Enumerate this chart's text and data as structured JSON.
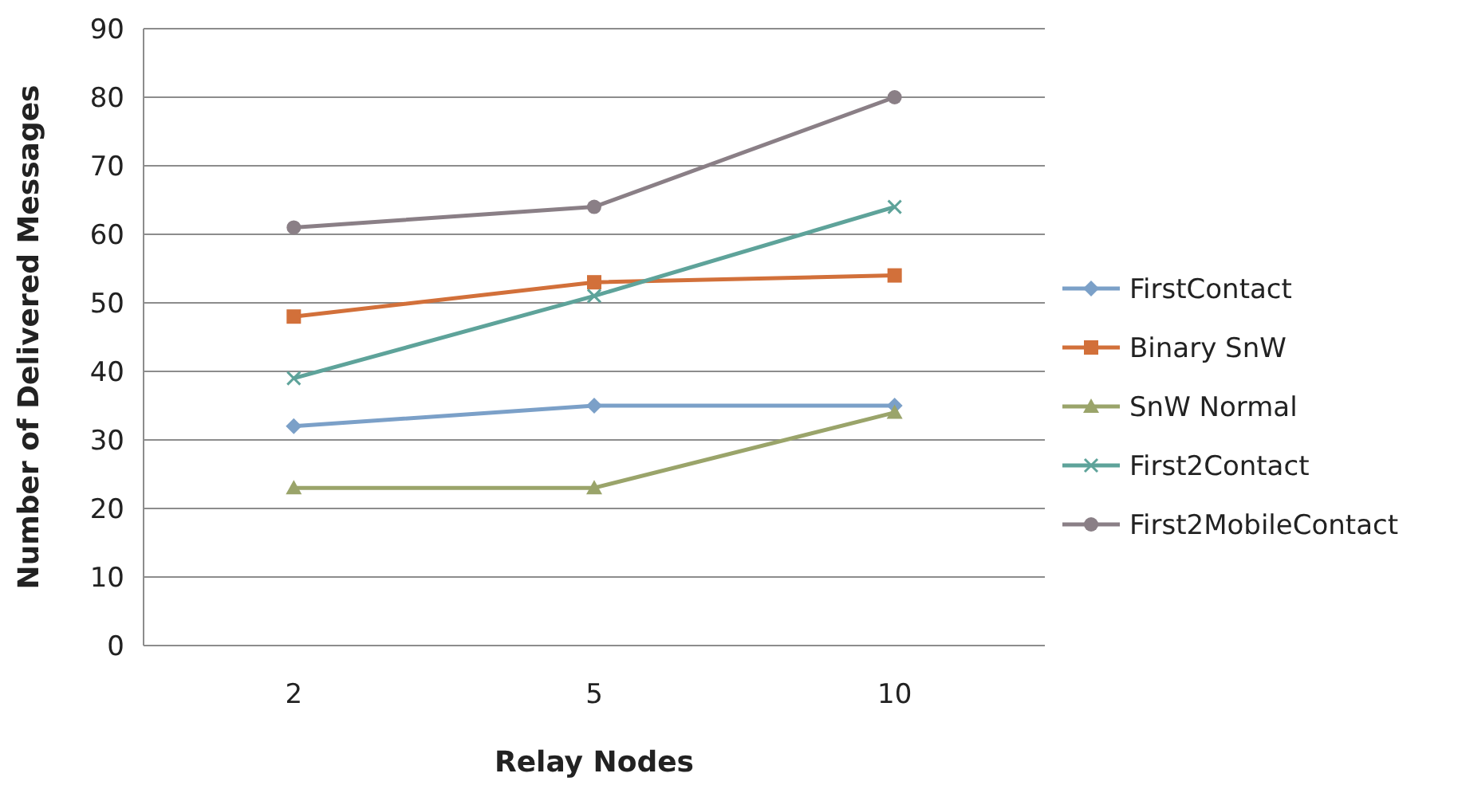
{
  "chart_data": {
    "type": "line",
    "xlabel": "Relay Nodes",
    "ylabel": "Number of Delivered Messages",
    "categories": [
      "2",
      "5",
      "10"
    ],
    "ylim": [
      0,
      90
    ],
    "yticks": [
      0,
      10,
      20,
      30,
      40,
      50,
      60,
      70,
      80,
      90
    ],
    "grid": "y",
    "legend": "right",
    "line_style": "solid",
    "series": [
      {
        "name": "FirstContact",
        "color": "#7ba0c8",
        "marker": "diamond",
        "values": [
          32,
          35,
          35
        ]
      },
      {
        "name": "Binary SnW",
        "color": "#d2703a",
        "marker": "square",
        "values": [
          48,
          53,
          54
        ]
      },
      {
        "name": "SnW Normal",
        "color": "#9aa46a",
        "marker": "triangle",
        "values": [
          23,
          23,
          34
        ]
      },
      {
        "name": "First2Contact",
        "color": "#5ea39a",
        "marker": "cross",
        "values": [
          39,
          51,
          64
        ]
      },
      {
        "name": "First2MobileContact",
        "color": "#8a7f86",
        "marker": "circle",
        "values": [
          61,
          64,
          80
        ]
      }
    ]
  }
}
